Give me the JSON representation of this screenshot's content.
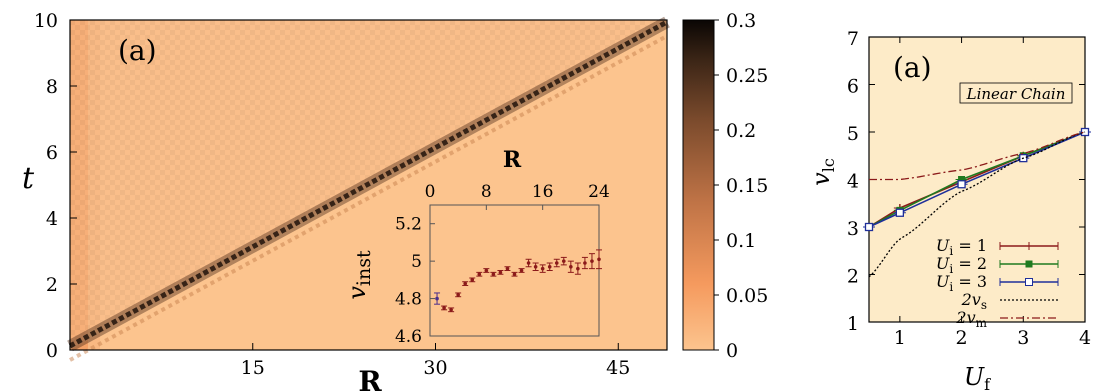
{
  "chart_data": [
    {
      "type": "heatmap",
      "panel_label": "(a)",
      "xlabel": "R",
      "ylabel": "t",
      "xlim": [
        0,
        49
      ],
      "ylim": [
        0,
        10
      ],
      "xticks": [
        "15",
        "30",
        "45"
      ],
      "yticks": [
        "0",
        "2",
        "4",
        "6",
        "8",
        "10"
      ],
      "colorbar": {
        "ticks": [
          "0",
          "0.05",
          "0.1",
          "0.15",
          "0.2",
          "0.25",
          "0.3"
        ],
        "range": [
          0,
          0.3
        ]
      },
      "front_line": {
        "r_at_t0": 0,
        "r_at_t10": 49
      },
      "inset": {
        "type": "scatter",
        "xlabel": "R",
        "ylabel": "v_inst",
        "ylabel_main": "v",
        "ylabel_sub": "inst",
        "xlim": [
          0,
          24
        ],
        "ylim": [
          4.6,
          5.3
        ],
        "xticks": [
          "0",
          "8",
          "16",
          "24"
        ],
        "yticks": [
          "4.6",
          "4.8",
          "5",
          "5.2"
        ],
        "x": [
          1,
          2,
          3,
          4,
          5,
          6,
          7,
          8,
          9,
          10,
          11,
          12,
          13,
          14,
          15,
          16,
          17,
          18,
          19,
          20,
          21,
          22,
          23,
          24
        ],
        "y": [
          4.8,
          4.75,
          4.74,
          4.82,
          4.88,
          4.9,
          4.93,
          4.95,
          4.93,
          4.94,
          4.96,
          4.93,
          4.95,
          4.99,
          4.97,
          4.96,
          4.97,
          4.99,
          5.0,
          4.97,
          4.96,
          4.99,
          5.0,
          5.01
        ],
        "err": [
          0.03,
          0.01,
          0.01,
          0.01,
          0.01,
          0.01,
          0.01,
          0.01,
          0.01,
          0.01,
          0.01,
          0.01,
          0.01,
          0.02,
          0.02,
          0.02,
          0.02,
          0.02,
          0.02,
          0.03,
          0.03,
          0.03,
          0.04,
          0.05
        ]
      }
    },
    {
      "type": "line",
      "panel_label": "(a)",
      "annotation": "Linear Chain",
      "xlabel": "U",
      "xlabel_sub": "f",
      "ylabel": "v",
      "ylabel_sub": "lc",
      "xlim": [
        0.5,
        4
      ],
      "ylim": [
        1,
        7
      ],
      "xticks": [
        "1",
        "2",
        "3",
        "4"
      ],
      "yticks": [
        "1",
        "2",
        "3",
        "4",
        "5",
        "6",
        "7"
      ],
      "x": [
        0.5,
        1,
        2,
        3,
        4
      ],
      "series": [
        {
          "label_main": "U",
          "label_sub": "i",
          "label_tail": " = 1",
          "color": "#8b1a1a",
          "marker": "plus",
          "values": [
            3.0,
            3.4,
            3.95,
            4.5,
            5.0
          ]
        },
        {
          "label_main": "U",
          "label_sub": "i",
          "label_tail": " = 2",
          "color": "#1f7a1f",
          "marker": "square-filled",
          "values": [
            3.0,
            3.35,
            4.0,
            4.5,
            5.0
          ]
        },
        {
          "label_main": "U",
          "label_sub": "i",
          "label_tail": " = 3",
          "color": "#1f2f9a",
          "marker": "square-open",
          "values": [
            3.0,
            3.3,
            3.9,
            4.45,
            5.0
          ]
        },
        {
          "label_main": "2v",
          "label_sub": "s",
          "label_tail": "",
          "color": "#000000",
          "dash": "2,2",
          "values": [
            1.95,
            2.75,
            3.75,
            4.45,
            5.0
          ]
        },
        {
          "label_main": "2v",
          "label_sub": "m",
          "label_tail": "",
          "color": "#8b1a1a",
          "dash": "8,3,2,3",
          "values": [
            4.0,
            4.0,
            4.2,
            4.55,
            5.0
          ]
        }
      ]
    }
  ]
}
